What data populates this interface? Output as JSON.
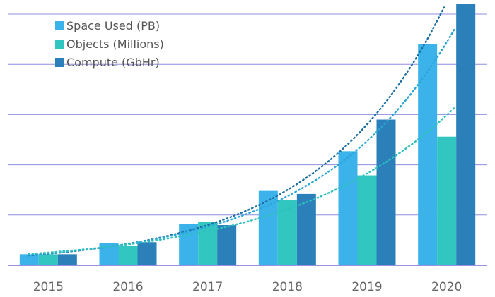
{
  "chart_data": {
    "type": "bar",
    "title": "",
    "xlabel": "",
    "ylabel": "",
    "categories": [
      "2015",
      "2016",
      "2017",
      "2018",
      "2019",
      "2020"
    ],
    "ylim": [
      0,
      5
    ],
    "grid": true,
    "legend_position": "top-left",
    "series": [
      {
        "name": "Space Used (PB)",
        "color": "#3bb3ea",
        "values": [
          0.22,
          0.44,
          0.82,
          1.48,
          2.27,
          4.4
        ]
      },
      {
        "name": "Objects (Millions)",
        "color": "#31c7c0",
        "values": [
          0.22,
          0.39,
          0.86,
          1.3,
          1.79,
          2.56
        ]
      },
      {
        "name": "Compute (GbHr)",
        "color": "#2b80b9",
        "values": [
          0.22,
          0.46,
          0.8,
          1.42,
          2.9,
          5.2
        ]
      }
    ],
    "trendlines": [
      {
        "series": "Compute (GbHr)",
        "type": "exponential",
        "style": "dotted",
        "color": "#1d6fa3"
      },
      {
        "series": "Space Used (PB)",
        "type": "exponential",
        "style": "dotted",
        "color": "#2aa6d9"
      },
      {
        "series": "Objects (Millions)",
        "type": "exponential",
        "style": "dotted",
        "color": "#2ec0c0"
      }
    ],
    "grid_color": "#8f8fe0",
    "axis_color": "#9a8fe0"
  }
}
